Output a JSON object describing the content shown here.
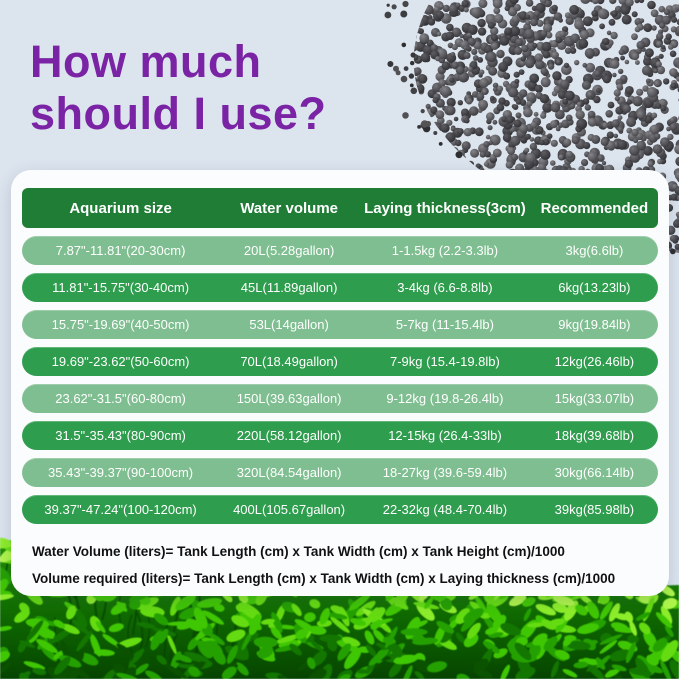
{
  "title": {
    "line1": "How much",
    "line2": "should I use?"
  },
  "table": {
    "headers": [
      "Aquarium size",
      "Water volume",
      "Laying thickness(3cm)",
      "Recommended"
    ],
    "rows": [
      [
        "7.87\"-11.81\"(20-30cm)",
        "20L(5.28gallon)",
        "1-1.5kg (2.2-3.3lb)",
        "3kg(6.6lb)"
      ],
      [
        "11.81\"-15.75\"(30-40cm)",
        "45L(11.89gallon)",
        "3-4kg (6.6-8.8lb)",
        "6kg(13.23lb)"
      ],
      [
        "15.75\"-19.69\"(40-50cm)",
        "53L(14gallon)",
        "5-7kg (11-15.4lb)",
        "9kg(19.84lb)"
      ],
      [
        "19.69\"-23.62\"(50-60cm)",
        "70L(18.49gallon)",
        "7-9kg (15.4-19.8lb)",
        "12kg(26.46lb)"
      ],
      [
        "23.62\"-31.5\"(60-80cm)",
        "150L(39.63gallon)",
        "9-12kg (19.8-26.4lb)",
        "15kg(33.07lb)"
      ],
      [
        "31.5\"-35.43\"(80-90cm)",
        "220L(58.12gallon)",
        "12-15kg (26.4-33lb)",
        "18kg(39.68lb)"
      ],
      [
        "35.43\"-39.37\"(90-100cm)",
        "320L(84.54gallon)",
        "18-27kg (39.6-59.4lb)",
        "30kg(66.14lb)"
      ],
      [
        "39.37\"-47.24\"(100-120cm)",
        "400L(105.67gallon)",
        "22-32kg (48.4-70.4lb)",
        "39kg(85.98lb)"
      ]
    ]
  },
  "formulas": [
    "Water Volume (liters)= Tank Length (cm) x Tank Width (cm) x Tank Height (cm)/1000",
    "Volume required (liters)= Tank Length (cm) x Tank Width (cm) x Laying thickness (cm)/1000"
  ],
  "colors": {
    "background": "#dce4ee",
    "title_purple": "#7a23a5",
    "header_green": "#1f7d36",
    "row_dark_green": "#2f9d4e",
    "row_light_green": "#7fbe90",
    "card_white": "#fbfcfe",
    "table_text": "#ffffff",
    "formula_text": "#111111"
  },
  "decor": {
    "top_right": "black-substrate-granules-pile",
    "bottom": "green-aquarium-plants-photo"
  }
}
